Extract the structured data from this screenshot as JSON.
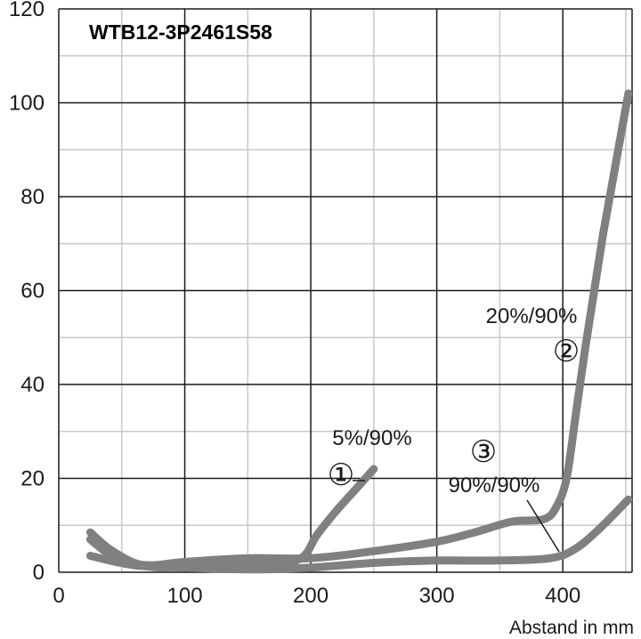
{
  "chart_data": {
    "type": "line",
    "title": "WTB12-3P2461S58",
    "xlabel": "Abstand in mm",
    "ylabel": "",
    "xlim": [
      0,
      455
    ],
    "ylim": [
      0,
      120
    ],
    "xticks": [
      0,
      100,
      200,
      300,
      400
    ],
    "yticks": [
      0,
      20,
      40,
      60,
      80,
      100,
      120
    ],
    "grid": true,
    "line_color": "#808080",
    "series": [
      {
        "name": "5%/90%",
        "marker": "①",
        "x": [
          25,
          40,
          60,
          80,
          100,
          150,
          190,
          205,
          220,
          235,
          250
        ],
        "y": [
          8.5,
          5,
          2,
          1,
          1.3,
          2,
          2.7,
          8,
          13,
          17.5,
          22
        ]
      },
      {
        "name": "20%/90%",
        "marker": "②",
        "x": [
          25,
          45,
          70,
          100,
          150,
          200,
          250,
          300,
          330,
          360,
          385,
          395,
          403,
          410,
          418,
          425,
          432,
          440,
          448,
          452
        ],
        "y": [
          7,
          3,
          1.5,
          2.2,
          3,
          3,
          4.5,
          6.5,
          8.5,
          10.8,
          11.3,
          14,
          20,
          33,
          48,
          60,
          72,
          84,
          96,
          102
        ]
      },
      {
        "name": "90%/90%",
        "marker": "③",
        "x": [
          25,
          60,
          100,
          150,
          200,
          250,
          300,
          350,
          390,
          410,
          430,
          452
        ],
        "y": [
          3.5,
          1.5,
          1,
          0.6,
          1,
          2,
          2.5,
          2.5,
          3,
          5,
          9.5,
          15.5
        ]
      }
    ],
    "annotations": [
      {
        "text": "5%/90%",
        "marker": "①"
      },
      {
        "text": "20%/90%",
        "marker": "②"
      },
      {
        "text": "90%/90%",
        "marker": "③"
      }
    ]
  }
}
